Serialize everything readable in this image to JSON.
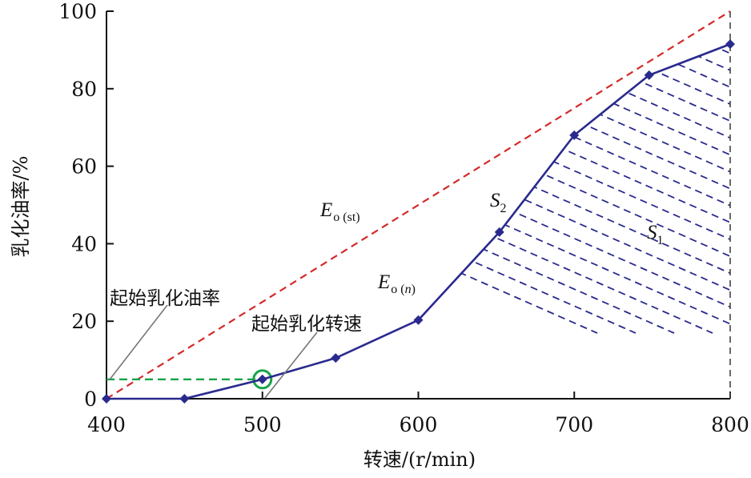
{
  "chart_data": {
    "type": "line",
    "xlabel": "转速/(r/min)",
    "ylabel": "乳化油率/%",
    "xlim": [
      400,
      800
    ],
    "ylim": [
      0,
      100
    ],
    "x_ticks": [
      "400",
      "500",
      "600",
      "700",
      "800"
    ],
    "y_ticks": [
      "0",
      "20",
      "40",
      "60",
      "80",
      "100"
    ],
    "series": [
      {
        "name": "Eo(n)",
        "color": "#2a2a8e",
        "marker": "diamond",
        "x": [
          400,
          450,
          500,
          547,
          600,
          652,
          700,
          748,
          800
        ],
        "y": [
          0,
          0,
          5,
          10.5,
          20.3,
          43,
          68,
          83.5,
          91.5
        ]
      },
      {
        "name": "Eo(st)",
        "color": "#d42a2a",
        "style": "dashed",
        "x": [
          400,
          800
        ],
        "y": [
          0,
          100
        ]
      }
    ],
    "onset_point": {
      "x": 500,
      "y": 5,
      "color": "#1aa34a"
    },
    "onset_reference_y": 5,
    "hatch_color": "#2a2a8e",
    "annotations": {
      "eo_st": {
        "main": "E",
        "sub": "o",
        "paren_open": "(",
        "sub_paren": "st",
        "paren_close": ")"
      },
      "eo_n": {
        "main": "E",
        "sub": "o",
        "paren_open": "(",
        "sub_paren": "n",
        "paren_close": ")"
      },
      "s1": {
        "main": "S",
        "sub": "1"
      },
      "s2": {
        "main": "S",
        "sub": "2"
      },
      "onset_rate_label": "起始乳化油率",
      "onset_speed_label": "起始乳化转速"
    }
  }
}
